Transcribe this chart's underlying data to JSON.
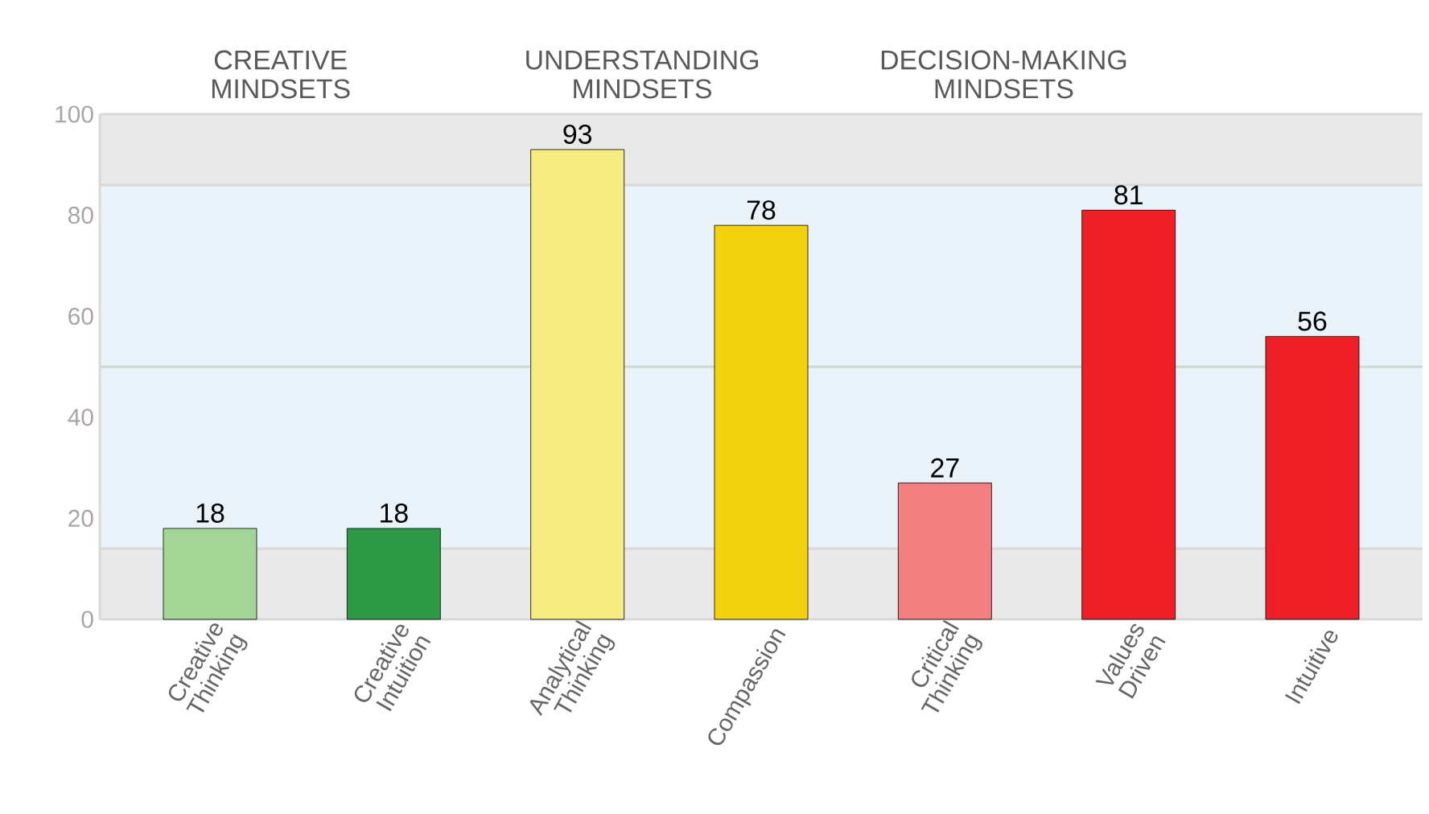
{
  "chart_data": {
    "type": "bar",
    "categories": [
      "Creative Thinking",
      "Creative Intuition",
      "Analytical Thinking",
      "Compassion",
      "Critical Thinking",
      "Values Driven",
      "Intuitive"
    ],
    "values": [
      18,
      18,
      93,
      78,
      27,
      81,
      56
    ],
    "colors": [
      "#a3d597",
      "#2e9a48",
      "#f6ec82",
      "#f2d20e",
      "#f47f80",
      "#ee1f27",
      "#ee1f27"
    ],
    "data_labels": true,
    "ylim": [
      0,
      100
    ],
    "yticks": [
      0,
      20,
      40,
      60,
      80,
      100
    ],
    "annotations": [
      "CREATIVE MINDSETS",
      "UNDERSTANDING MINDSETS",
      "DECISION-MAKING MINDSETS"
    ],
    "bands": [
      {
        "axis": "y",
        "from": 0,
        "to": 14,
        "color": "#e9e9e9"
      },
      {
        "axis": "y",
        "from": 14,
        "to": 86,
        "color": "#eaf3fa"
      },
      {
        "axis": "y",
        "from": 86,
        "to": 100,
        "color": "#e9e9e9"
      }
    ],
    "ref_lines": [
      {
        "axis": "y",
        "value": 50,
        "color": "#cdd8d0"
      }
    ]
  }
}
